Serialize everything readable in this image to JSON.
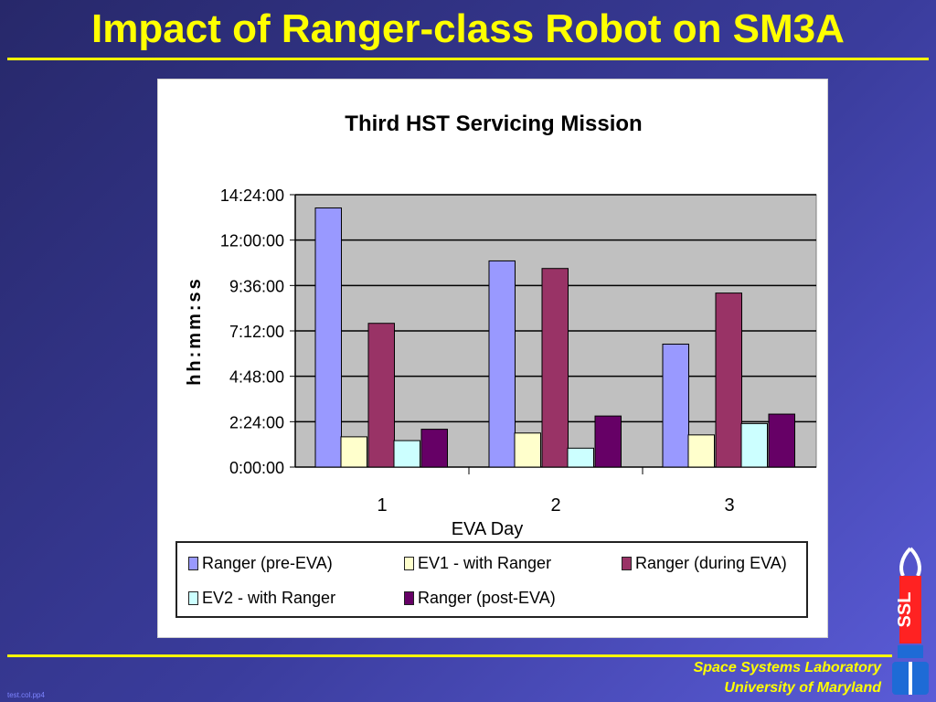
{
  "slide": {
    "title": "Impact of Ranger-class Robot on SM3A",
    "footer_line1": "Space Systems Laboratory",
    "footer_line2": "University of Maryland",
    "file_name": "test.col.pp4",
    "logo_text": "SSL"
  },
  "colors": {
    "background": "#2f3185",
    "title": "#ffff00",
    "plot_area": "#c0c0c0"
  },
  "chart_data": {
    "type": "bar",
    "title": "Third HST Servicing Mission",
    "xlabel": "EVA Day",
    "ylabel": "hh:mm:ss",
    "categories": [
      "1",
      "2",
      "3"
    ],
    "y_ticks": [
      "0:00:00",
      "2:24:00",
      "4:48:00",
      "7:12:00",
      "9:36:00",
      "12:00:00",
      "14:24:00"
    ],
    "y_tick_hours": [
      0,
      2.4,
      4.8,
      7.2,
      9.6,
      12.0,
      14.4
    ],
    "ylim_hours": [
      0,
      14.4
    ],
    "grid": true,
    "legend_position": "bottom",
    "series": [
      {
        "name": "Ranger (pre-EVA)",
        "color": "#9999ff",
        "values_hours": [
          13.7,
          10.9,
          6.5
        ]
      },
      {
        "name": "EV1 - with Ranger",
        "color": "#ffffcc",
        "values_hours": [
          1.6,
          1.8,
          1.7
        ]
      },
      {
        "name": "Ranger (during EVA)",
        "color": "#993366",
        "values_hours": [
          7.6,
          10.5,
          9.2
        ]
      },
      {
        "name": "EV2 - with Ranger",
        "color": "#ccffff",
        "values_hours": [
          1.4,
          1.0,
          2.3
        ]
      },
      {
        "name": "Ranger (post-EVA)",
        "color": "#660066",
        "values_hours": [
          2.0,
          2.7,
          2.8
        ]
      }
    ]
  }
}
